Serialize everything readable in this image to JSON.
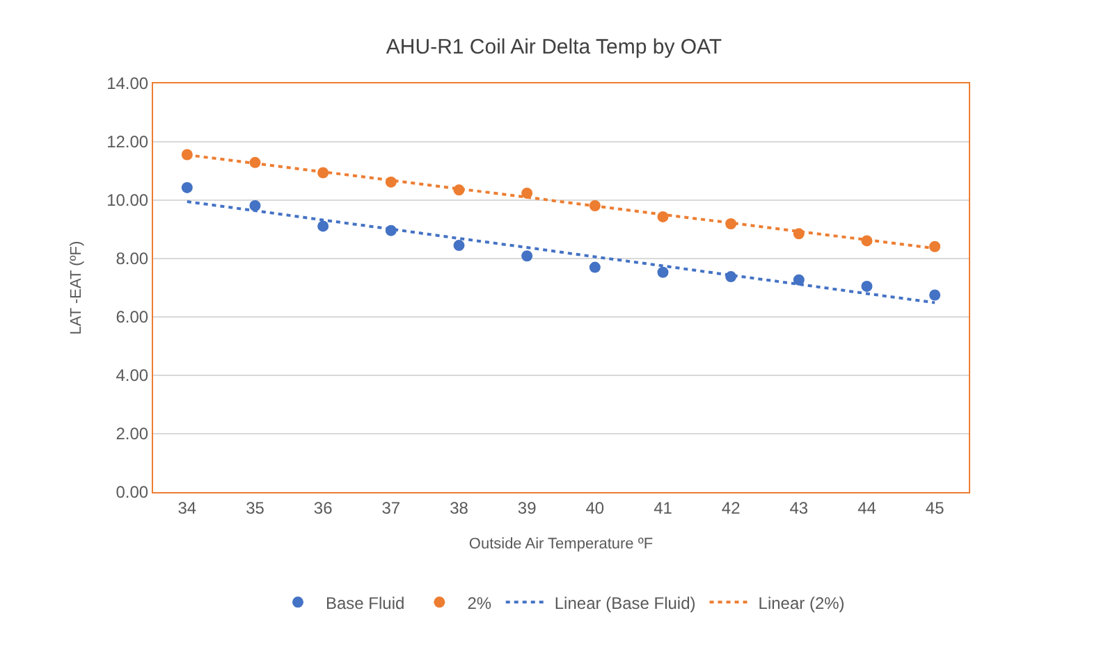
{
  "chart_data": {
    "type": "scatter",
    "title": "AHU-R1 Coil Air Delta Temp by OAT",
    "xlabel": "Outside Air Temperature ºF",
    "ylabel": "LAT -EAT (ºF)",
    "x": [
      34,
      35,
      36,
      37,
      38,
      39,
      40,
      41,
      42,
      43,
      44,
      45
    ],
    "series": [
      {
        "name": "Base Fluid",
        "color": "#4472c4",
        "values": [
          10.43,
          9.81,
          9.11,
          8.96,
          8.45,
          8.09,
          7.7,
          7.53,
          7.38,
          7.27,
          7.05,
          6.75
        ]
      },
      {
        "name": "2%",
        "color": "#ed7d31",
        "values": [
          11.56,
          11.29,
          10.94,
          10.62,
          10.35,
          10.24,
          9.81,
          9.43,
          9.19,
          8.85,
          8.61,
          8.41
        ]
      },
      {
        "name": "Linear (Base Fluid)",
        "type": "line",
        "color": "#4472c4",
        "values": [
          9.95,
          9.64,
          9.32,
          9.01,
          8.69,
          8.38,
          8.06,
          7.75,
          7.43,
          7.12,
          6.8,
          6.49
        ],
        "line_style": "dotted",
        "marker": "none"
      },
      {
        "name": "Linear (2%)",
        "type": "line",
        "color": "#ed7d31",
        "values": [
          11.55,
          11.26,
          10.97,
          10.68,
          10.39,
          10.1,
          9.8,
          9.51,
          9.22,
          8.93,
          8.64,
          8.35
        ],
        "line_style": "dotted",
        "marker": "none"
      }
    ],
    "marker": "circle",
    "xlim": [
      33.5,
      45.5
    ],
    "xticks": [
      34,
      35,
      36,
      37,
      38,
      39,
      40,
      41,
      42,
      43,
      44,
      45
    ],
    "ylim": [
      0,
      14
    ],
    "yticks": [
      {
        "value": 0,
        "label": "0.00"
      },
      {
        "value": 2,
        "label": "2.00"
      },
      {
        "value": 4,
        "label": "4.00"
      },
      {
        "value": 6,
        "label": "6.00"
      },
      {
        "value": 8,
        "label": "8.00"
      },
      {
        "value": 10,
        "label": "10.00"
      },
      {
        "value": 12,
        "label": "12.00"
      },
      {
        "value": 14,
        "label": "14.00"
      }
    ],
    "grid": "y",
    "legend": "bottom"
  }
}
